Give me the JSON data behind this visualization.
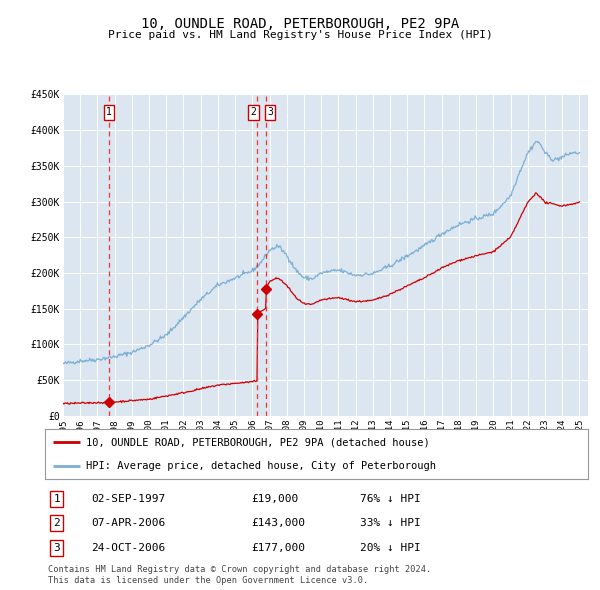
{
  "title": "10, OUNDLE ROAD, PETERBOROUGH, PE2 9PA",
  "subtitle": "Price paid vs. HM Land Registry's House Price Index (HPI)",
  "background_color": "#dce6f1",
  "fig_bg_color": "#ffffff",
  "ylim": [
    0,
    450000
  ],
  "yticks": [
    0,
    50000,
    100000,
    150000,
    200000,
    250000,
    300000,
    350000,
    400000,
    450000
  ],
  "ytick_labels": [
    "£0",
    "£50K",
    "£100K",
    "£150K",
    "£200K",
    "£250K",
    "£300K",
    "£350K",
    "£400K",
    "£450K"
  ],
  "xlim_start": 1995.0,
  "xlim_end": 2025.5,
  "xtick_years": [
    1995,
    1996,
    1997,
    1998,
    1999,
    2000,
    2001,
    2002,
    2003,
    2004,
    2005,
    2006,
    2007,
    2008,
    2009,
    2010,
    2011,
    2012,
    2013,
    2014,
    2015,
    2016,
    2017,
    2018,
    2019,
    2020,
    2021,
    2022,
    2023,
    2024,
    2025
  ],
  "red_line_color": "#cc0000",
  "blue_line_color": "#7bafd4",
  "vline_color": "#ee3333",
  "grid_color": "#ffffff",
  "transactions": [
    {
      "date_num": 1997.67,
      "price": 19000,
      "label": "1"
    },
    {
      "date_num": 2006.27,
      "price": 143000,
      "label": "2"
    },
    {
      "date_num": 2006.8,
      "price": 177000,
      "label": "3"
    }
  ],
  "transaction_table": [
    {
      "num": "1",
      "date": "02-SEP-1997",
      "price": "£19,000",
      "hpi": "76% ↓ HPI"
    },
    {
      "num": "2",
      "date": "07-APR-2006",
      "price": "£143,000",
      "hpi": "33% ↓ HPI"
    },
    {
      "num": "3",
      "date": "24-OCT-2006",
      "price": "£177,000",
      "hpi": "20% ↓ HPI"
    }
  ],
  "legend1": "10, OUNDLE ROAD, PETERBOROUGH, PE2 9PA (detached house)",
  "legend2": "HPI: Average price, detached house, City of Peterborough",
  "footnote": "Contains HM Land Registry data © Crown copyright and database right 2024.\nThis data is licensed under the Open Government Licence v3.0."
}
